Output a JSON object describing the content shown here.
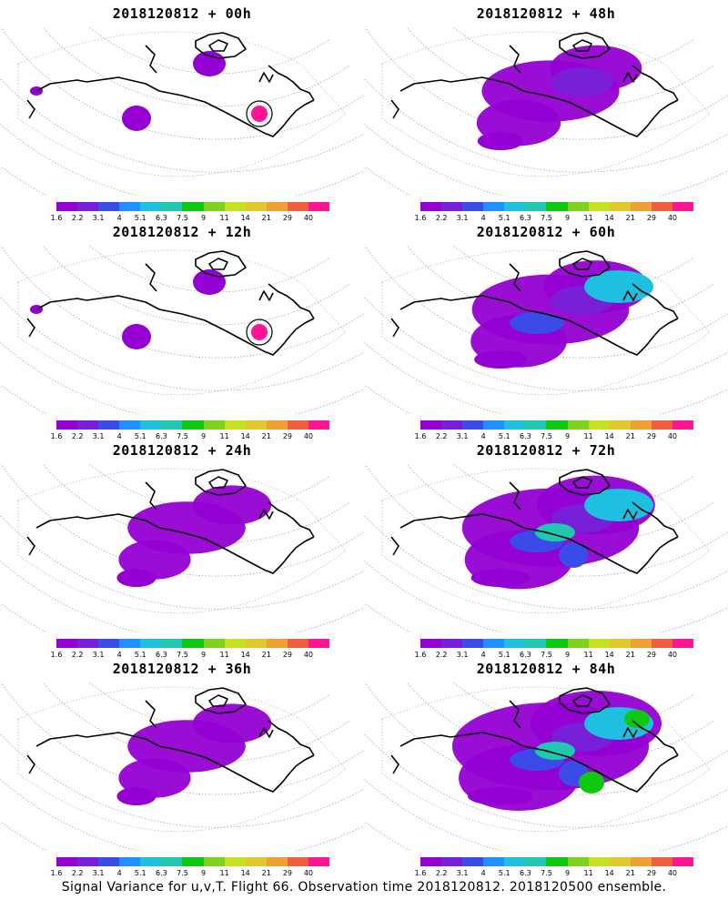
{
  "footer": "Signal Variance for u,v,T. Flight 66. Observation time 2018120812. 2018120500 ensemble.",
  "colorbar": {
    "labels": [
      "1.6",
      "2.2",
      "3.1",
      "4",
      "5.1",
      "6.3",
      "7.5",
      "9",
      "11",
      "14",
      "21",
      "29",
      "40"
    ],
    "colors": [
      "#9400d3",
      "#7a1fd8",
      "#3a4be8",
      "#1e90ff",
      "#1ec0e0",
      "#20c8b0",
      "#11c811",
      "#7ed321",
      "#c8e01e",
      "#e0c82a",
      "#f0a030",
      "#f06040",
      "#ff1493"
    ]
  },
  "panels": [
    {
      "title": "2018120812 + 00h",
      "level": 0
    },
    {
      "title": "2018120812 + 48h",
      "level": 2
    },
    {
      "title": "2018120812 + 12h",
      "level": 0
    },
    {
      "title": "2018120812 + 60h",
      "level": 3
    },
    {
      "title": "2018120812 + 24h",
      "level": 1
    },
    {
      "title": "2018120812 + 72h",
      "level": 4
    },
    {
      "title": "2018120812 + 36h",
      "level": 1
    },
    {
      "title": "2018120812 + 84h",
      "level": 5
    }
  ]
}
